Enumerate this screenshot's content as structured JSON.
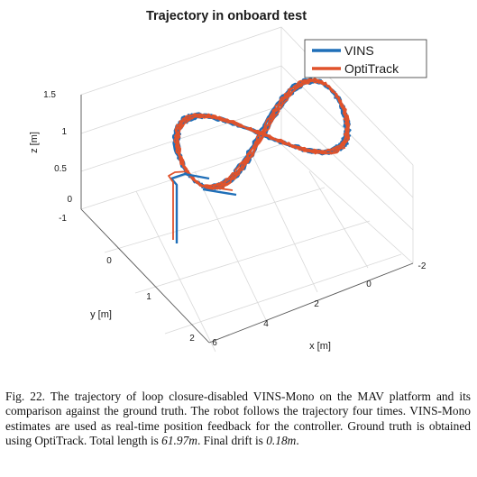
{
  "chart_data": {
    "type": "line",
    "subtype": "3d-trajectory",
    "title": "Trajectory in onboard test",
    "xlabel": "x [m]",
    "ylabel": "y [m]",
    "zlabel": "z [m]",
    "x_ticks": [
      "6",
      "4",
      "2",
      "0",
      "-2"
    ],
    "y_ticks": [
      "-1",
      "0",
      "1",
      "2"
    ],
    "z_ticks": [
      "0",
      "0.5",
      "1",
      "1.5"
    ],
    "xlim": [
      -2,
      6
    ],
    "ylim": [
      -1,
      2
    ],
    "zlim": [
      0,
      1.5
    ],
    "grid": true,
    "legend_position": "top-right",
    "series": [
      {
        "name": "VINS",
        "color": "#1f6fb8"
      },
      {
        "name": "OptiTrack",
        "color": "#e0522b"
      }
    ]
  },
  "caption": {
    "label": "Fig. 22.",
    "text": "The trajectory of loop closure-disabled VINS-Mono on the MAV platform and its comparison against the ground truth. The robot follows the trajectory four times. VINS-Mono estimates are used as real-time position feedback for the controller. Ground truth is obtained using OptiTrack. Total length is",
    "length_value": "61.97",
    "length_unit": "m",
    "drift_prefix": ". Final drift is",
    "drift_value": "0.18",
    "drift_unit": "m",
    "end": "."
  }
}
